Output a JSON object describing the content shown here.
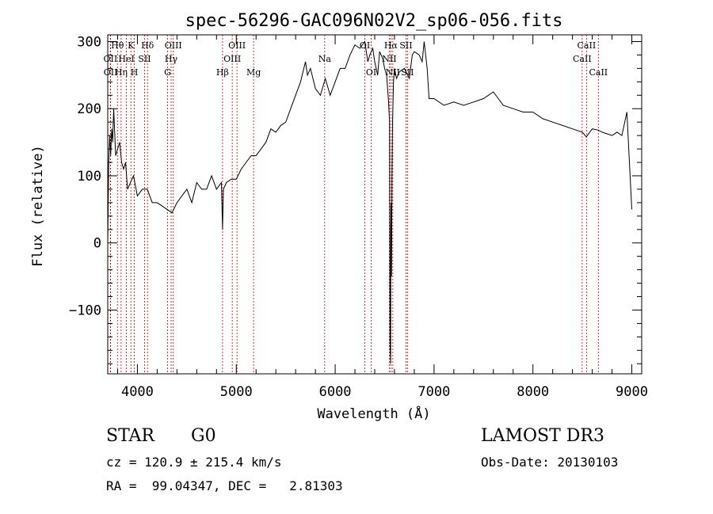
{
  "info": {
    "object_class": "STAR",
    "subclass": "G0",
    "survey": "LAMOST DR3",
    "cz": "cz = 120.9 ± 215.4 km/s",
    "obs_date": "Obs-Date: 20130103",
    "coords": "RA =  99.04347, DEC =   2.81303"
  },
  "chart_data": {
    "type": "line",
    "title": "spec-56296-GAC096N02V2_sp06-056.fits",
    "xlabel": "Wavelength (Å)",
    "ylabel": "Flux (relative)",
    "xlim": [
      3700,
      9100
    ],
    "ylim": [
      -195,
      310
    ],
    "x_ticks": [
      4000,
      5000,
      6000,
      7000,
      8000,
      9000
    ],
    "x_tick_labels": [
      "4000",
      "5000",
      "6000",
      "7000",
      "8000",
      "9000"
    ],
    "y_ticks": [
      -100,
      0,
      100,
      200,
      300
    ],
    "y_tick_labels": [
      "−100",
      "0",
      "100",
      "200",
      "300"
    ],
    "line_color": "#000000",
    "marker_color": "#cc0000",
    "series": [
      {
        "name": "flux",
        "x": [
          3700,
          3710,
          3720,
          3730,
          3740,
          3750,
          3760,
          3780,
          3800,
          3820,
          3840,
          3860,
          3880,
          3900,
          3930,
          3960,
          4000,
          4050,
          4100,
          4150,
          4200,
          4250,
          4300,
          4350,
          4400,
          4450,
          4500,
          4550,
          4600,
          4650,
          4700,
          4750,
          4800,
          4850,
          4861,
          4870,
          4900,
          4950,
          5000,
          5050,
          5100,
          5150,
          5200,
          5250,
          5300,
          5350,
          5400,
          5450,
          5500,
          5550,
          5600,
          5650,
          5700,
          5720,
          5750,
          5800,
          5850,
          5900,
          5950,
          6000,
          6050,
          6100,
          6150,
          6200,
          6250,
          6300,
          6330,
          6350,
          6380,
          6400,
          6430,
          6450,
          6480,
          6500,
          6520,
          6540,
          6550,
          6555,
          6560,
          6563,
          6566,
          6570,
          6575,
          6580,
          6590,
          6600,
          6620,
          6650,
          6700,
          6750,
          6780,
          6800,
          6850,
          6880,
          6900,
          6930,
          6950,
          7000,
          7100,
          7200,
          7300,
          7400,
          7500,
          7550,
          7600,
          7650,
          7700,
          7800,
          7900,
          8000,
          8100,
          8200,
          8300,
          8400,
          8500,
          8540,
          8600,
          8662,
          8700,
          8800,
          8850,
          8900,
          8950,
          9000
        ],
        "y": [
          0,
          120,
          160,
          130,
          170,
          150,
          200,
          130,
          140,
          150,
          120,
          110,
          120,
          80,
          90,
          100,
          70,
          80,
          80,
          60,
          60,
          55,
          50,
          45,
          60,
          70,
          80,
          60,
          90,
          80,
          80,
          100,
          80,
          90,
          20,
          80,
          90,
          95,
          95,
          110,
          120,
          130,
          130,
          140,
          150,
          170,
          165,
          175,
          180,
          200,
          220,
          240,
          270,
          250,
          260,
          230,
          220,
          245,
          220,
          240,
          260,
          260,
          280,
          295,
          290,
          300,
          270,
          280,
          290,
          270,
          250,
          285,
          275,
          260,
          250,
          210,
          180,
          -150,
          -180,
          20,
          60,
          -50,
          100,
          180,
          240,
          260,
          245,
          255,
          260,
          245,
          280,
          285,
          280,
          270,
          300,
          260,
          215,
          215,
          205,
          210,
          205,
          210,
          215,
          220,
          225,
          215,
          205,
          200,
          195,
          195,
          185,
          180,
          175,
          170,
          165,
          158,
          170,
          168,
          165,
          160,
          165,
          160,
          195,
          50
        ]
      }
    ],
    "line_markers": [
      {
        "name": "Hθ",
        "x": 3798,
        "row": 0
      },
      {
        "name": "OII",
        "x": 3727,
        "row": 1
      },
      {
        "name": "OII",
        "x": 3729,
        "row": 2
      },
      {
        "name": "Hη",
        "x": 3835,
        "row": 2
      },
      {
        "name": "HeI",
        "x": 3889,
        "row": 1
      },
      {
        "name": "K",
        "x": 3934,
        "row": 0
      },
      {
        "name": "H",
        "x": 3969,
        "row": 2
      },
      {
        "name": "SII",
        "x": 4072,
        "row": 1
      },
      {
        "name": "Hδ",
        "x": 4102,
        "row": 0
      },
      {
        "name": "OIII",
        "x": 4363,
        "row": 0
      },
      {
        "name": "Hγ",
        "x": 4341,
        "row": 1
      },
      {
        "name": "G",
        "x": 4305,
        "row": 2
      },
      {
        "name": "Hβ",
        "x": 4861,
        "row": 2
      },
      {
        "name": "OIII",
        "x": 4959,
        "row": 1
      },
      {
        "name": "OIII",
        "x": 5007,
        "row": 0
      },
      {
        "name": "Mg",
        "x": 5175,
        "row": 2
      },
      {
        "name": "Na",
        "x": 5894,
        "row": 1
      },
      {
        "name": "OI",
        "x": 6300,
        "row": 0
      },
      {
        "name": "OI",
        "x": 6364,
        "row": 2
      },
      {
        "name": "Hα",
        "x": 6563,
        "row": 0
      },
      {
        "name": "NII",
        "x": 6548,
        "row": 1
      },
      {
        "name": "NII",
        "x": 6583,
        "row": 2
      },
      {
        "name": "SII",
        "x": 6716,
        "row": 0
      },
      {
        "name": "SII",
        "x": 6731,
        "row": 2
      },
      {
        "name": "CaII",
        "x": 8498,
        "row": 1
      },
      {
        "name": "CaII",
        "x": 8542,
        "row": 0
      },
      {
        "name": "CaII",
        "x": 8662,
        "row": 2
      }
    ]
  }
}
